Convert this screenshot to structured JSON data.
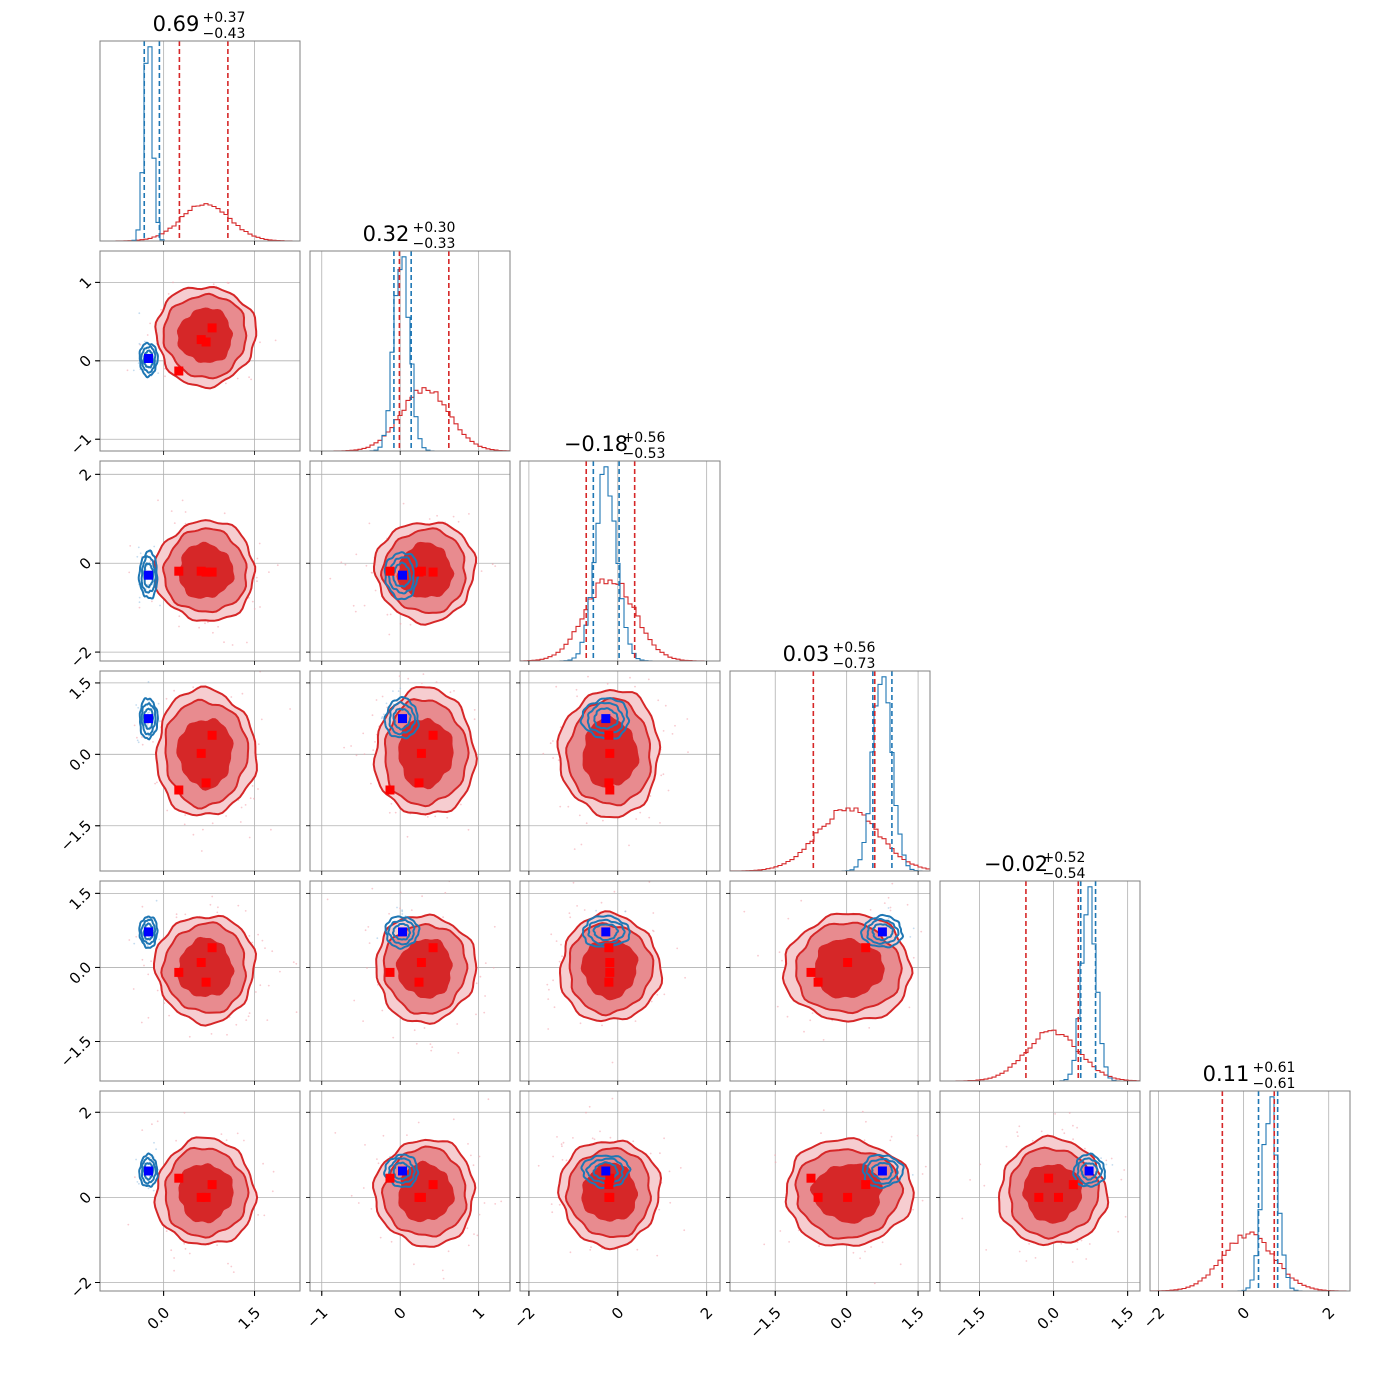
{
  "chart_data": {
    "type": "corner",
    "grid": true,
    "colors": {
      "red": "#d62728",
      "blue": "#1f77b4",
      "marker_red": "#ff0000",
      "marker_blue": "#0000ff"
    },
    "n_params": 6,
    "titles": [
      {
        "value": "0.69",
        "plus": "+0.37",
        "minus": "−0.43"
      },
      {
        "value": "0.32",
        "plus": "+0.30",
        "minus": "−0.33"
      },
      {
        "value": "−0.18",
        "plus": "+0.56",
        "minus": "−0.53"
      },
      {
        "value": "0.03",
        "plus": "+0.56",
        "minus": "−0.73"
      },
      {
        "value": "−0.02",
        "plus": "+0.52",
        "minus": "−0.54"
      },
      {
        "value": "0.11",
        "plus": "+0.61",
        "minus": "−0.61"
      }
    ],
    "axes": [
      {
        "range": [
          -1.05,
          2.25
        ],
        "ticks": [
          0.0,
          1.5
        ],
        "tick_labels": [
          "0.0",
          "1.5"
        ]
      },
      {
        "range": [
          -1.15,
          1.4
        ],
        "ticks": [
          -1,
          0,
          1
        ],
        "tick_labels": [
          "−1",
          "0",
          "1"
        ]
      },
      {
        "range": [
          -2.2,
          2.3
        ],
        "ticks": [
          -2,
          0,
          2
        ],
        "tick_labels": [
          "−2",
          "0",
          "2"
        ]
      },
      {
        "range": [
          -2.45,
          1.75
        ],
        "ticks": [
          -1.5,
          0.0,
          1.5
        ],
        "tick_labels": [
          "−1.5",
          "0.0",
          "1.5"
        ]
      },
      {
        "range": [
          -2.3,
          1.75
        ],
        "ticks": [
          -1.5,
          0.0,
          1.5
        ],
        "tick_labels": [
          "−1.5",
          "0.0",
          "1.5"
        ]
      },
      {
        "range": [
          -2.2,
          2.5
        ],
        "ticks": [
          -2,
          0,
          2
        ],
        "tick_labels": [
          "−2",
          "0",
          "2"
        ]
      }
    ],
    "red_posterior": {
      "mean": [
        0.69,
        0.32,
        -0.18,
        0.03,
        -0.02,
        0.11
      ],
      "sd": [
        0.4,
        0.31,
        0.55,
        0.65,
        0.53,
        0.61
      ],
      "quantiles": [
        [
          0.26,
          1.06
        ],
        [
          -0.01,
          0.62
        ],
        [
          -0.71,
          0.38
        ],
        [
          -0.7,
          0.59
        ],
        [
          -0.56,
          0.5
        ],
        [
          -0.5,
          0.72
        ]
      ]
    },
    "blue_posterior": {
      "mean": [
        -0.25,
        0.02,
        -0.27,
        0.75,
        0.72,
        0.62
      ],
      "sd": [
        0.07,
        0.1,
        0.25,
        0.2,
        0.15,
        0.18
      ],
      "quantiles": [
        [
          -0.32,
          -0.07
        ],
        [
          -0.08,
          0.14
        ],
        [
          -0.55,
          0.03
        ],
        [
          0.55,
          0.95
        ],
        [
          0.55,
          0.85
        ],
        [
          0.35,
          0.8
        ]
      ]
    },
    "truth_blue": [
      -0.25,
      0.03,
      -0.27,
      0.75,
      0.72,
      0.62
    ],
    "truth_red": [
      [
        0.8,
        0.42,
        -0.2,
        0.4,
        0.4,
        0.3
      ],
      [
        0.62,
        0.27,
        -0.18,
        0.02,
        0.1,
        0.0
      ],
      [
        0.7,
        0.24,
        -0.2,
        -0.6,
        -0.3,
        0.0
      ],
      [
        0.25,
        -0.13,
        -0.18,
        -0.75,
        -0.1,
        0.45
      ]
    ]
  }
}
